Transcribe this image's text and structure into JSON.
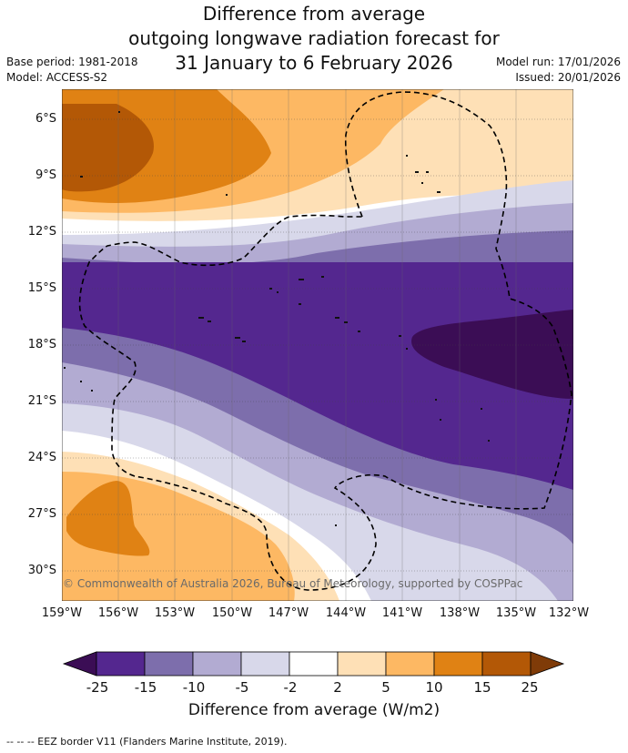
{
  "title": {
    "line1": "Difference from average",
    "line2": "outgoing longwave radiation forecast for",
    "line3": "31 January to 6 February 2026"
  },
  "meta": {
    "base_period": "Base period: 1981-2018",
    "model": "Model: ACCESS-S2",
    "model_run": "Model run: 17/01/2026",
    "issued": "Issued: 20/01/2026"
  },
  "map": {
    "lat_labels": [
      "6°S",
      "9°S",
      "12°S",
      "15°S",
      "18°S",
      "21°S",
      "24°S",
      "27°S",
      "30°S"
    ],
    "lon_labels": [
      "159°W",
      "156°W",
      "153°W",
      "150°W",
      "147°W",
      "144°W",
      "141°W",
      "138°W",
      "135°W",
      "132°W"
    ],
    "copyright": "© Commonwealth of Australia 2026, Bureau of Meteorology, supported by COSPPac"
  },
  "colorbar": {
    "ticks": [
      "-25",
      "-15",
      "-10",
      "-5",
      "-2",
      "2",
      "5",
      "10",
      "15",
      "25"
    ],
    "colors": [
      "#3b0d55",
      "#54278f",
      "#7d6eac",
      "#b2abd2",
      "#d8d8ea",
      "#ffffff",
      "#fee0b6",
      "#fdb863",
      "#e08214",
      "#b35806",
      "#7f3b08"
    ],
    "title": "Difference from average (W/m2)"
  },
  "footer": "--  --  -- EEZ border V11 (Flanders Marine Institute, 2019)."
}
